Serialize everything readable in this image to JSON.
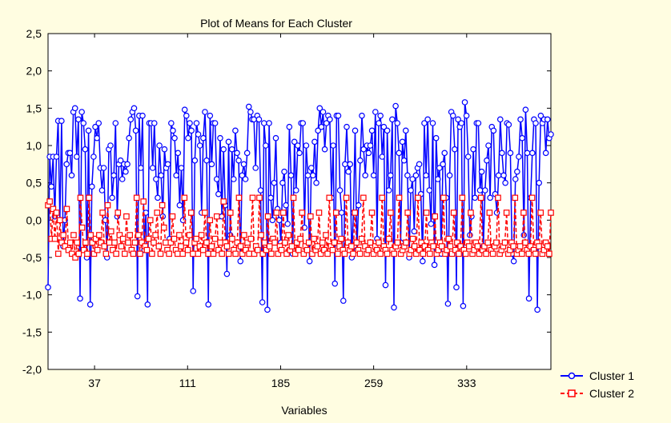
{
  "chart_data": {
    "type": "line",
    "title": "Plot of Means for Each Cluster",
    "xlabel": "Variables",
    "ylabel": "",
    "ylim": [
      -2.0,
      2.5
    ],
    "ytick_labels": [
      "-2,0",
      "-1,5",
      "-1,0",
      "-0,5",
      "0,0",
      "0,5",
      "1,0",
      "1,5",
      "2,0",
      "2,5"
    ],
    "yticks": [
      -2.0,
      -1.5,
      -1.0,
      -0.5,
      0.0,
      0.5,
      1.0,
      1.5,
      2.0,
      2.5
    ],
    "xlim": [
      0,
      400
    ],
    "xtick_labels": [
      "37",
      "111",
      "185",
      "259",
      "333"
    ],
    "xticks": [
      37,
      111,
      185,
      259,
      333
    ],
    "grid": false,
    "legend_position": "bottom-right",
    "series": [
      {
        "name": "Cluster 1",
        "color": "#0000ff",
        "marker": "circle",
        "values": [
          -0.9,
          0.85,
          0.45,
          0.85,
          0.05,
          0.85,
          1.33,
          0.0,
          1.33,
          -0.35,
          0.0,
          0.75,
          0.9,
          0.9,
          0.6,
          1.45,
          1.5,
          0.85,
          1.35,
          -1.05,
          1.45,
          1.3,
          0.95,
          -0.5,
          1.2,
          -1.13,
          0.45,
          0.85,
          1.25,
          1.1,
          1.3,
          0.7,
          0.4,
          0.7,
          0.0,
          -0.5,
          0.95,
          1.0,
          0.3,
          0.6,
          1.3,
          0.05,
          0.75,
          0.8,
          0.55,
          0.75,
          0.65,
          0.75,
          1.1,
          1.35,
          1.45,
          1.5,
          1.2,
          -1.02,
          1.4,
          0.7,
          1.4,
          -0.4,
          0.1,
          -1.13,
          1.3,
          1.3,
          0.7,
          1.3,
          0.55,
          0.3,
          1.0,
          0.6,
          0.05,
          0.95,
          0.7,
          0.75,
          -0.25,
          1.3,
          1.2,
          1.1,
          0.6,
          0.9,
          0.2,
          0.7,
          0.0,
          1.48,
          1.4,
          1.1,
          1.3,
          1.2,
          -0.95,
          0.8,
          1.3,
          1.15,
          1.0,
          0.1,
          1.1,
          1.45,
          0.8,
          -1.13,
          1.4,
          0.75,
          1.3,
          1.3,
          0.55,
          0.35,
          1.1,
          0.05,
          0.95,
          0.2,
          -0.72,
          1.05,
          -0.2,
          0.95,
          0.55,
          1.2,
          0.9,
          0.8,
          -0.55,
          0.6,
          0.75,
          0.55,
          0.9,
          1.52,
          1.45,
          1.35,
          1.35,
          0.7,
          1.4,
          1.35,
          0.4,
          -1.1,
          1.3,
          1.0,
          -1.2,
          1.3,
          0.3,
          0.0,
          0.5,
          1.1,
          0.15,
          0.0,
          -0.3,
          0.5,
          0.65,
          0.2,
          -0.05,
          1.25,
          0.6,
          -0.45,
          1.05,
          0.4,
          1.0,
          0.9,
          1.3,
          1.3,
          -0.1,
          1.0,
          0.6,
          -0.55,
          0.7,
          0.6,
          1.05,
          0.5,
          1.2,
          1.5,
          1.25,
          1.45,
          0.95,
          1.3,
          1.4,
          1.35,
          0.3,
          1.0,
          -0.85,
          1.4,
          1.4,
          0.4,
          0.1,
          -1.08,
          0.75,
          1.25,
          0.65,
          0.75,
          -0.5,
          0.1,
          1.2,
          -0.4,
          0.2,
          0.8,
          1.4,
          0.95,
          0.6,
          1.0,
          0.9,
          1.0,
          1.2,
          0.6,
          1.45,
          -0.25,
          1.3,
          1.4,
          0.85,
          1.25,
          -0.87,
          1.2,
          0.4,
          0.6,
          1.35,
          -1.17,
          1.53,
          1.3,
          0.9,
          -0.3,
          1.05,
          0.8,
          1.2,
          0.6,
          -0.5,
          0.4,
          0.55,
          -0.15,
          0.6,
          0.7,
          0.75,
          0.35,
          -0.55,
          1.3,
          0.6,
          1.35,
          0.4,
          -0.05,
          1.3,
          -0.6,
          1.1,
          0.55,
          0.7,
          -0.45,
          0.75,
          0.9,
          0.3,
          -1.12,
          0.6,
          1.45,
          1.4,
          0.95,
          -0.9,
          1.35,
          1.25,
          1.3,
          -1.15,
          1.58,
          1.4,
          0.85,
          -0.2,
          0.05,
          0.95,
          0.3,
          1.3,
          1.3,
          0.4,
          0.65,
          -0.35,
          0.4,
          0.8,
          1.0,
          0.3,
          1.25,
          1.2,
          0.35,
          0.1,
          0.6,
          1.35,
          0.9,
          0.6,
          0.5,
          1.3,
          1.28,
          0.9,
          -0.45,
          -0.55,
          0.55,
          0.65,
          0.85,
          1.35,
          1.1,
          -0.2,
          1.48,
          0.9,
          -1.05,
          0.3,
          0.9,
          1.35,
          1.3,
          -1.2,
          0.5,
          1.4,
          1.3,
          1.35,
          0.9,
          1.35,
          1.1,
          1.15
        ]
      },
      {
        "name": "Cluster 2",
        "color": "#ff0000",
        "marker": "square",
        "values": [
          0.2,
          0.25,
          -0.25,
          0.15,
          -0.25,
          0.1,
          -0.45,
          0.0,
          -0.3,
          -0.2,
          -0.35,
          0.15,
          -0.4,
          -0.3,
          -0.45,
          -0.2,
          -0.5,
          -0.3,
          -0.45,
          0.3,
          -0.1,
          -0.4,
          -0.3,
          -0.45,
          0.3,
          -0.2,
          -0.3,
          -0.45,
          -0.25,
          -0.4,
          -0.2,
          -0.3,
          0.1,
          -0.35,
          -0.45,
          0.2,
          -0.3,
          -0.15,
          -0.4,
          -0.3,
          -0.45,
          0.1,
          -0.2,
          -0.35,
          -0.25,
          -0.45,
          0.05,
          -0.3,
          -0.2,
          -0.4,
          -0.45,
          -0.3,
          0.3,
          -0.2,
          -0.45,
          -0.3,
          0.25,
          -0.35,
          -0.4,
          -0.25,
          0.0,
          -0.45,
          -0.3,
          -0.2,
          0.1,
          -0.35,
          -0.45,
          0.2,
          -0.1,
          -0.3,
          -0.4,
          -0.45,
          -0.3,
          0.05,
          -0.25,
          -0.4,
          -0.45,
          -0.2,
          -0.35,
          -0.45,
          0.3,
          -0.3,
          -0.4,
          -0.2,
          0.1,
          -0.45,
          -0.3,
          -0.25,
          -0.45,
          -0.35,
          -0.2,
          -0.4,
          0.1,
          -0.3,
          -0.45,
          0.0,
          -0.35,
          -0.45,
          -0.25,
          0.05,
          -0.4,
          -0.3,
          -0.45,
          0.25,
          -0.3,
          -0.35,
          -0.45,
          0.1,
          -0.25,
          -0.4,
          -0.45,
          -0.3,
          0.3,
          -0.35,
          -0.45,
          -0.2,
          -0.4,
          -0.3,
          -0.45,
          -0.25,
          0.3,
          -0.45,
          -0.35,
          -0.4,
          0.3,
          -0.2,
          -0.45,
          -0.3,
          -0.4,
          0.05,
          -0.35,
          -0.45,
          -0.25,
          -0.3,
          0.1,
          -0.45,
          -0.35,
          -0.4,
          0.1,
          -0.3,
          -0.45,
          -0.2,
          -0.4,
          -0.35,
          0.3,
          -0.45,
          -0.3,
          -0.4,
          -0.25,
          0.1,
          -0.45,
          -0.35,
          -0.4,
          -0.3,
          0.05,
          -0.45,
          -0.25,
          -0.4,
          -0.35,
          0.1,
          -0.45,
          -0.3,
          -0.4,
          -0.2,
          -0.45,
          0.3,
          -0.35,
          -0.4,
          -0.3,
          0.1,
          -0.45,
          -0.35,
          -0.25,
          -0.4,
          -0.45,
          0.3,
          -0.3,
          -0.4,
          -0.35,
          -0.45,
          0.1,
          -0.3,
          -0.4,
          -0.45,
          -0.25,
          0.3,
          -0.35,
          -0.45,
          -0.4,
          -0.3,
          0.1,
          -0.45,
          -0.35,
          -0.4,
          -0.3,
          -0.45,
          0.3,
          -0.35,
          -0.4,
          -0.45,
          -0.25,
          0.1,
          -0.4,
          -0.45,
          -0.35,
          -0.3,
          0.3,
          -0.45,
          -0.4,
          -0.35,
          -0.3,
          0.1,
          -0.45,
          -0.4,
          -0.25,
          -0.35,
          -0.45,
          0.3,
          -0.4,
          -0.3,
          -0.45,
          -0.35,
          0.1,
          -0.4,
          -0.45,
          -0.3,
          -0.35,
          0.05,
          -0.45,
          -0.4,
          -0.3,
          -0.35,
          0.3,
          -0.45,
          -0.4,
          -0.25,
          -0.35,
          -0.45,
          0.1,
          -0.4,
          -0.3,
          -0.45,
          -0.35,
          0.3,
          -0.4,
          -0.45,
          -0.3,
          -0.35,
          0.1,
          -0.45,
          -0.4,
          -0.3,
          -0.35,
          -0.45,
          0.3,
          -0.4,
          -0.35,
          -0.45,
          -0.3,
          0.1,
          -0.4,
          -0.45,
          -0.35,
          -0.3,
          0.3,
          -0.45,
          -0.4,
          -0.35,
          -0.3,
          0.1,
          -0.45,
          -0.4,
          -0.3,
          -0.35,
          0.3,
          -0.45,
          -0.4,
          -0.35,
          -0.45,
          0.1,
          -0.3,
          -0.4,
          -0.45,
          -0.35,
          0.3,
          -0.4,
          -0.45,
          -0.3,
          -0.35,
          0.1,
          -0.45,
          -0.4,
          -0.3,
          -0.35,
          -0.45,
          0.1
        ]
      }
    ]
  }
}
